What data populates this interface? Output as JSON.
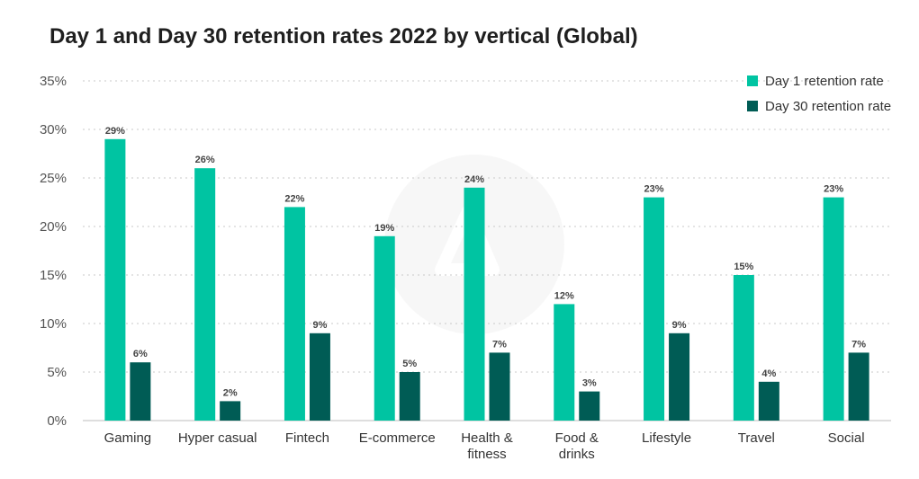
{
  "chart_data": {
    "type": "bar",
    "title": "Day 1 and Day 30 retention rates 2022 by vertical (Global)",
    "categories": [
      [
        "Gaming"
      ],
      [
        "Hyper casual"
      ],
      [
        "Fintech"
      ],
      [
        "E-commerce"
      ],
      [
        "Health &",
        "fitness"
      ],
      [
        "Food &",
        "drinks"
      ],
      [
        "Lifestyle"
      ],
      [
        "Travel"
      ],
      [
        "Social"
      ]
    ],
    "series": [
      {
        "name": "Day 1 retention rate",
        "color": "#00c4a2",
        "values": [
          29,
          26,
          22,
          19,
          24,
          12,
          23,
          15,
          23
        ],
        "labels": [
          "29%",
          "26%",
          "22%",
          "19%",
          "24%",
          "12%",
          "23%",
          "15%",
          "23%"
        ]
      },
      {
        "name": "Day 30 retention rate",
        "color": "#005c55",
        "values": [
          6,
          2,
          9,
          5,
          7,
          3,
          9,
          4,
          7
        ],
        "labels": [
          "6%",
          "2%",
          "9%",
          "5%",
          "7%",
          "3%",
          "9%",
          "4%",
          "7%"
        ]
      }
    ],
    "ylim": [
      0,
      35
    ],
    "yticks": [
      0,
      5,
      10,
      15,
      20,
      25,
      30,
      35
    ],
    "ytick_labels": [
      "0%",
      "5%",
      "10%",
      "15%",
      "20%",
      "25%",
      "30%",
      "35%"
    ],
    "grid": true,
    "legend": "top-right"
  }
}
